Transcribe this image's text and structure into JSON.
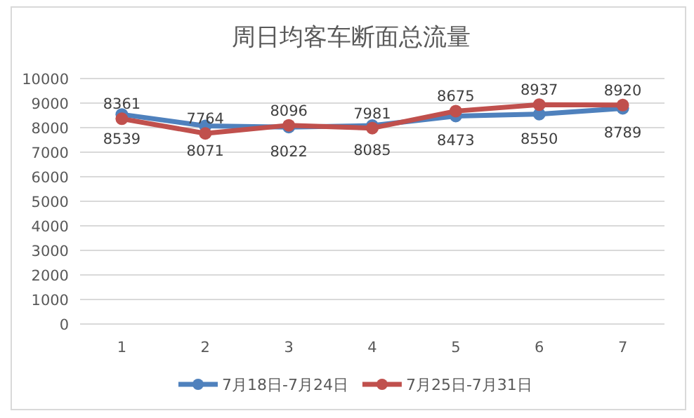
{
  "chart_data": {
    "type": "line",
    "title": "周日均客车断面总流量",
    "categories": [
      "1",
      "2",
      "3",
      "4",
      "5",
      "6",
      "7"
    ],
    "series": [
      {
        "name": "7月18日-7月24日",
        "color": "#4f81bd",
        "values": [
          8539,
          8071,
          8022,
          8085,
          8473,
          8550,
          8789
        ]
      },
      {
        "name": "7月25日-7月31日",
        "color": "#c0504d",
        "values": [
          8361,
          7764,
          8096,
          7981,
          8675,
          8937,
          8920
        ]
      }
    ],
    "ylim": [
      0,
      10000
    ],
    "yticks": [
      0,
      1000,
      2000,
      3000,
      4000,
      5000,
      6000,
      7000,
      8000,
      9000,
      10000
    ],
    "grid": "y",
    "legend": "bottom",
    "marker": "circle",
    "line_style": "solid",
    "data_labels": true
  }
}
